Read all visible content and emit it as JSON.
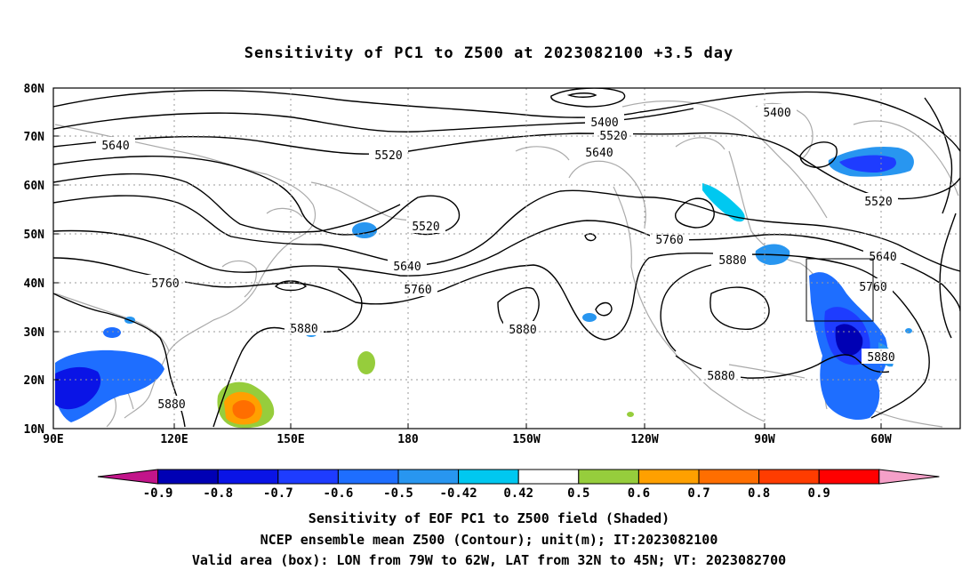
{
  "title": "Sensitivity of PC1 to Z500 at 2023082100 +3.5 day",
  "lat_labels": [
    "80N",
    "70N",
    "60N",
    "50N",
    "40N",
    "30N",
    "20N",
    "10N"
  ],
  "lon_labels": [
    "90E",
    "120E",
    "150E",
    "180",
    "150W",
    "120W",
    "90W",
    "60W"
  ],
  "contour_labels": [
    "5400",
    "5520",
    "5640",
    "5760",
    "5880"
  ],
  "colorbar": {
    "labels": [
      "-0.9",
      "-0.8",
      "-0.7",
      "-0.6",
      "-0.5",
      "-0.42",
      "0.42",
      "0.5",
      "0.6",
      "0.7",
      "0.8",
      "0.9"
    ],
    "colors": [
      "#c2158a",
      "#0000b4",
      "#0a14e6",
      "#1e3cff",
      "#1e6eff",
      "#2896f0",
      "#00c8f0",
      "#ffffff",
      "#96cd3c",
      "#ffa000",
      "#ff6e00",
      "#ff3c00",
      "#ff0000",
      "#f5a0c8"
    ]
  },
  "caption": {
    "line1": "Sensitivity of EOF PC1 to Z500 field (Shaded)",
    "line2": "NCEP ensemble mean Z500 (Contour); unit(m); IT:2023082100",
    "line3": "Valid area (box): LON from 79W to 62W, LAT from 32N to 45N; VT: 2023082700"
  },
  "valid_box": {
    "lon_min": -79,
    "lon_max": -62,
    "lat_min": 32,
    "lat_max": 45
  }
}
